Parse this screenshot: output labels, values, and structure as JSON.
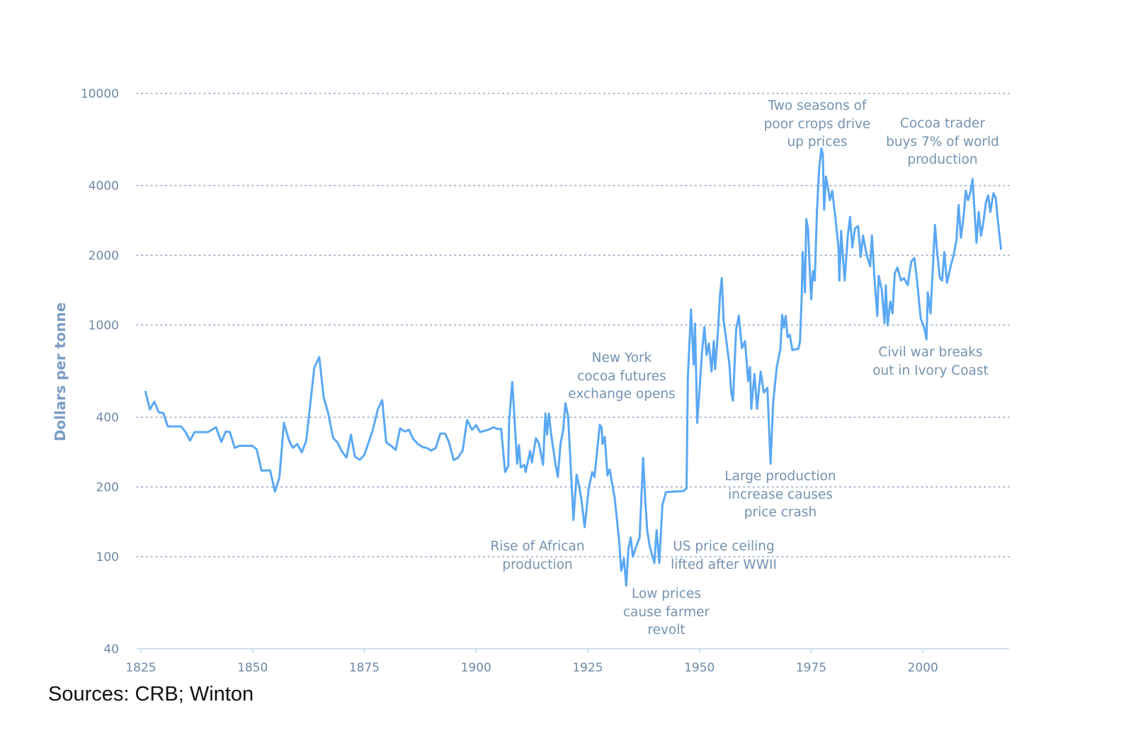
{
  "chart_data": {
    "type": "line",
    "title": "",
    "xlabel": "",
    "ylabel": "Dollars per tonne",
    "y_scale": "log",
    "ylim": [
      40,
      10000
    ],
    "xlim": [
      1825,
      2019
    ],
    "y_ticks": [
      40,
      100,
      200,
      400,
      1000,
      2000,
      4000,
      10000
    ],
    "y_tick_labels": [
      "40",
      "100",
      "200",
      "400",
      "1000",
      "2000",
      "4000",
      "10000"
    ],
    "x_ticks": [
      1825,
      1850,
      1875,
      1900,
      1925,
      1950,
      1975,
      2000
    ],
    "x_tick_labels": [
      "1825",
      "1850",
      "1875",
      "1900",
      "1925",
      "1950",
      "1975",
      "2000"
    ],
    "grid": "horizontal dotted",
    "line_color": "#5aa8f4",
    "series": [
      {
        "x": [
          1826.0,
          1827.0,
          1828.0,
          1829.0,
          1830.0,
          1831.0,
          1834.0,
          1835.0,
          1836.0,
          1837.0,
          1840.0,
          1841.8,
          1843.0,
          1844.0,
          1844.9,
          1846.0,
          1847.0,
          1849.9,
          1850.9,
          1852.0,
          1853.9,
          1855.0,
          1856.0,
          1857.0,
          1858.1,
          1859.0,
          1860.0,
          1861.0,
          1862.0,
          1863.8,
          1864.9,
          1865.9,
          1866.9,
          1868.0,
          1869.0,
          1870.0,
          1871.0,
          1872.0,
          1872.9,
          1874.0,
          1875.0,
          1876.9,
          1878.0,
          1879.0,
          1879.9,
          1881.0,
          1882.0,
          1883.0,
          1884.0,
          1885.0,
          1885.9,
          1887.0,
          1888.1,
          1888.9,
          1890.0,
          1891.0,
          1892.0,
          1893.1,
          1893.9,
          1895.0,
          1896.0,
          1897.0,
          1898.0,
          1899.1,
          1900.0,
          1900.9,
          1902.7,
          1903.9,
          1904.9,
          1905.6,
          1906.5,
          1907.2,
          1907.4,
          1908.1,
          1908.7,
          1909.2,
          1909.6,
          1910.0,
          1910.8,
          1911.1,
          1912.1,
          1912.5,
          1913.4,
          1914.1,
          1915.0,
          1915.5,
          1915.9,
          1916.3,
          1916.8,
          1917.8,
          1918.3,
          1918.9,
          1919.5,
          1920.0,
          1920.6,
          1921.3,
          1921.8,
          1922.5,
          1923.0,
          1923.6,
          1924.3,
          1925.2,
          1926.0,
          1926.5,
          1927.0,
          1927.7,
          1928.1,
          1928.3,
          1928.8,
          1929.4,
          1929.9,
          1931.0,
          1932.0,
          1932.5,
          1933.1,
          1933.6,
          1934.1,
          1934.6,
          1935.1,
          1935.8,
          1936.6,
          1937.4,
          1937.8,
          1938.3,
          1938.9,
          1939.9,
          1940.4,
          1941.0,
          1941.7,
          1942.5,
          1946.4,
          1947.1,
          1947.4,
          1948.1,
          1948.7,
          1949.0,
          1949.5,
          1950.0,
          1950.6,
          1951.1,
          1951.6,
          1952.1,
          1952.7,
          1953.2,
          1953.5,
          1954.1,
          1954.6,
          1955.0,
          1955.4,
          1956.1,
          1956.7,
          1957.1,
          1957.5,
          1958.2,
          1958.8,
          1959.5,
          1960.2,
          1960.9,
          1961.3,
          1961.6,
          1962.3,
          1962.9,
          1963.7,
          1964.4,
          1965.2,
          1965.9,
          1966.5,
          1967.3,
          1968.1,
          1968.5,
          1968.9,
          1969.3,
          1969.7,
          1970.2,
          1970.8,
          1972.1,
          1972.5,
          1972.9,
          1973.1,
          1973.6,
          1973.9,
          1974.3,
          1974.6,
          1975.0,
          1975.4,
          1975.8,
          1976.3,
          1976.8,
          1977.3,
          1977.6,
          1977.9,
          1978.3,
          1978.7,
          1979.2,
          1979.7,
          1980.4,
          1981.1,
          1981.3,
          1981.7,
          1982.1,
          1982.5,
          1983.2,
          1983.7,
          1984.2,
          1984.8,
          1985.5,
          1986.1,
          1986.6,
          1987.4,
          1988.2,
          1988.6,
          1989.2,
          1989.8,
          1990.1,
          1990.8,
          1991.4,
          1991.7,
          1992.1,
          1992.7,
          1993.2,
          1993.7,
          1994.3,
          1995.1,
          1995.8,
          1996.6,
          1997.4,
          1998.1,
          1998.7,
          1999.5,
          2000.3,
          2000.8,
          2001.1,
          2001.7,
          2002.2,
          2002.7,
          2003.2,
          2003.8,
          2004.3,
          2004.8,
          2005.4,
          2006.2,
          2006.9,
          2007.5,
          2008.0,
          2008.5,
          2009.1,
          2009.6,
          2010.1,
          2010.6,
          2011.1,
          2011.4,
          2012.0,
          2012.5,
          2013.0,
          2013.5,
          2014.1,
          2014.6,
          2015.1,
          2015.8,
          2016.3,
          2016.7,
          2017.2,
          2017.5
        ],
        "values": [
          519,
          432,
          467,
          420,
          417,
          365,
          365,
          345,
          317,
          345,
          345,
          362,
          313,
          347,
          345,
          295,
          301,
          301,
          291,
          235,
          236,
          191,
          220,
          378,
          319,
          295,
          306,
          282,
          317,
          655,
          728,
          487,
          417,
          326,
          311,
          284,
          268,
          336,
          270,
          262,
          275,
          353,
          432,
          474,
          311,
          301,
          289,
          358,
          347,
          353,
          323,
          306,
          297,
          295,
          287,
          295,
          340,
          340,
          313,
          261,
          268,
          287,
          389,
          353,
          370,
          345,
          353,
          362,
          355,
          357,
          232,
          246,
          382,
          568,
          369,
          252,
          303,
          243,
          249,
          232,
          286,
          255,
          325,
          307,
          249,
          415,
          337,
          415,
          337,
          249,
          221,
          307,
          352,
          460,
          405,
          221,
          144,
          226,
          204,
          175,
          134,
          197,
          232,
          221,
          273,
          371,
          361,
          307,
          329,
          224,
          238,
          180,
          118,
          87,
          98,
          75,
          108,
          121,
          100,
          110,
          121,
          267,
          184,
          130,
          110,
          94,
          130,
          94,
          167,
          190,
          192,
          197,
          588,
          1167,
          676,
          1014,
          378,
          523,
          777,
          980,
          741,
          832,
          630,
          852,
          644,
          914,
          1355,
          1596,
          1050,
          832,
          676,
          511,
          471,
          957,
          1099,
          795,
          852,
          574,
          659,
          435,
          615,
          435,
          630,
          511,
          536,
          252,
          466,
          659,
          789,
          1109,
          975,
          1096,
          887,
          908,
          780,
          789,
          846,
          1352,
          2065,
          1384,
          2864,
          2610,
          1880,
          1290,
          1711,
          1557,
          3146,
          4800,
          5794,
          5468,
          3146,
          4375,
          3981,
          3458,
          3800,
          2931,
          2163,
          1557,
          2548,
          1968,
          1557,
          2432,
          2931,
          2163,
          2610,
          2673,
          1968,
          2432,
          2014,
          1791,
          2432,
          1557,
          1094,
          1633,
          1419,
          1021,
          1486,
          997,
          1262,
          1122,
          1671,
          1771,
          1557,
          1596,
          1486,
          1880,
          1946,
          1557,
          1069,
          975,
          867,
          1384,
          1122,
          1711,
          2704,
          2065,
          1596,
          1557,
          2065,
          1521,
          1791,
          2014,
          2323,
          3296,
          2377,
          2931,
          3800,
          3458,
          3707,
          4266,
          3458,
          2265,
          3076,
          2432,
          2735,
          3380,
          3624,
          3076,
          3707,
          3540,
          2931,
          2377,
          2113
        ]
      }
    ],
    "annotations": [
      {
        "lines": [
          "Two seasons of",
          "poor crops drive",
          "up prices"
        ]
      },
      {
        "lines": [
          "Cocoa trader",
          "buys 7% of world",
          "production"
        ]
      },
      {
        "lines": [
          "New York",
          "cocoa futures",
          "exchange opens"
        ]
      },
      {
        "lines": [
          "Civil war breaks",
          "out in Ivory Coast"
        ]
      },
      {
        "lines": [
          "Large production",
          "increase causes",
          "price crash"
        ]
      },
      {
        "lines": [
          "Rise of African",
          "production"
        ]
      },
      {
        "lines": [
          "US price ceiling",
          "lifted after WWII"
        ]
      },
      {
        "lines": [
          "Low prices",
          "cause farmer",
          "revolt"
        ]
      }
    ]
  },
  "source": "Sources: CRB; Winton"
}
